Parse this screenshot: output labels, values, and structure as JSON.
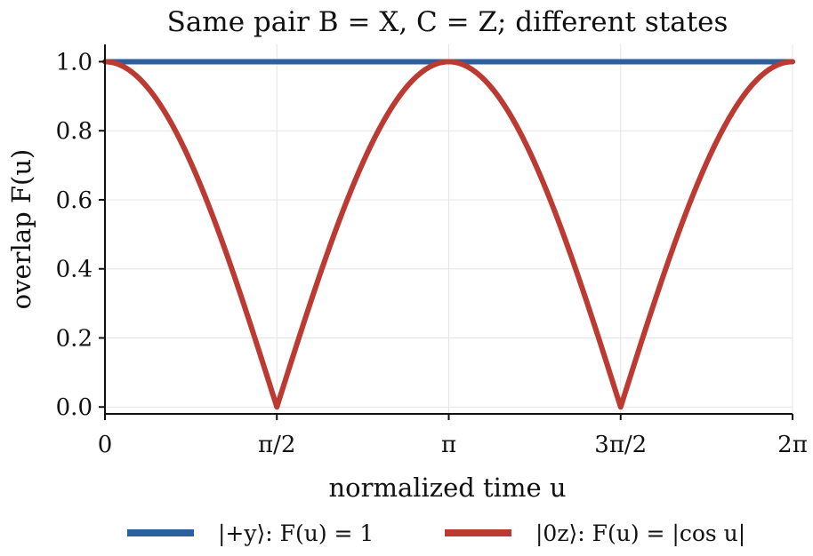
{
  "chart_data": {
    "type": "line",
    "title": "Same pair B = X, C = Z; different states",
    "xlabel": "normalized time u",
    "ylabel": "overlap F(u)",
    "xlim": [
      0,
      6.283185307
    ],
    "ylim": [
      -0.02,
      1.05
    ],
    "grid": true,
    "legend_position": "bottom",
    "x_ticks": [
      {
        "value": 0,
        "label": "0"
      },
      {
        "value": 1.5707963,
        "label": "π/2"
      },
      {
        "value": 3.1415927,
        "label": "π"
      },
      {
        "value": 4.712389,
        "label": "3π/2"
      },
      {
        "value": 6.2831853,
        "label": "2π"
      }
    ],
    "y_ticks": [
      {
        "value": 0.0,
        "label": "0.0"
      },
      {
        "value": 0.2,
        "label": "0.2"
      },
      {
        "value": 0.4,
        "label": "0.4"
      },
      {
        "value": 0.6,
        "label": "0.6"
      },
      {
        "value": 0.8,
        "label": "0.8"
      },
      {
        "value": 1.0,
        "label": "1.0"
      }
    ],
    "series": [
      {
        "name": "|+y⟩: F(u) = 1",
        "color": "#2c5f9e",
        "function": "constant 1",
        "x": [
          0,
          1.5707963,
          3.1415927,
          4.712389,
          6.2831853
        ],
        "y": [
          1,
          1,
          1,
          1,
          1
        ]
      },
      {
        "name": "|0z⟩: F(u) = |cos u|",
        "color": "#bb3a32",
        "function": "|cos u|",
        "x": [
          0,
          0.785398,
          1.5707963,
          2.356194,
          3.1415927,
          3.926991,
          4.712389,
          5.497787,
          6.2831853
        ],
        "y": [
          1,
          0.707,
          0,
          0.707,
          1,
          0.707,
          0,
          0.707,
          1
        ]
      }
    ]
  }
}
